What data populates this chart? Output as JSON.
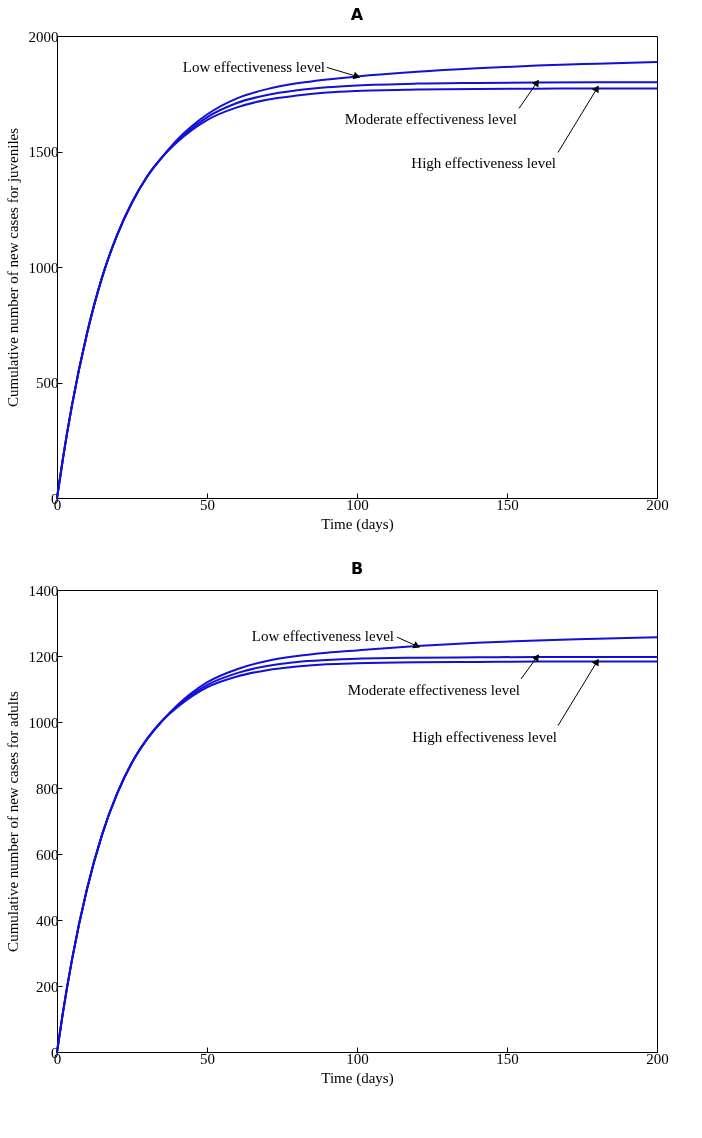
{
  "chart_data": [
    {
      "type": "line",
      "title": "A",
      "xlabel": "Time (days)",
      "ylabel": "Cumulative number of new cases for juveniles",
      "x": [
        0,
        2,
        5,
        10,
        15,
        20,
        25,
        30,
        35,
        40,
        50,
        60,
        70,
        80,
        90,
        100,
        120,
        140,
        160,
        180,
        200
      ],
      "xlim": [
        0,
        200
      ],
      "xticks": [
        0,
        50,
        100,
        150,
        200
      ],
      "ylim": [
        0,
        2000
      ],
      "yticks": [
        0,
        500,
        1000,
        1500,
        2000
      ],
      "series": [
        {
          "name": "Low effectiveness level",
          "color": "#1010d8",
          "values": [
            0,
            173,
            402,
            712,
            954,
            1137,
            1279,
            1391,
            1475,
            1550,
            1660,
            1730,
            1770,
            1795,
            1812,
            1825,
            1845,
            1860,
            1872,
            1880,
            1887
          ]
        },
        {
          "name": "Moderate effectiveness level",
          "color": "#1010d8",
          "values": [
            0,
            173,
            402,
            712,
            954,
            1137,
            1279,
            1391,
            1475,
            1545,
            1648,
            1710,
            1745,
            1765,
            1778,
            1786,
            1794,
            1797,
            1799,
            1800,
            1800
          ]
        },
        {
          "name": "High effectiveness level",
          "color": "#1010d8",
          "values": [
            0,
            173,
            402,
            712,
            954,
            1137,
            1279,
            1391,
            1475,
            1540,
            1636,
            1691,
            1724,
            1742,
            1755,
            1762,
            1768,
            1771,
            1772,
            1773,
            1773
          ]
        }
      ]
    },
    {
      "type": "line",
      "title": "B",
      "xlabel": "Time (days)",
      "ylabel": "Cumulative number of new cases for adults",
      "x": [
        0,
        2,
        5,
        10,
        15,
        20,
        25,
        30,
        35,
        40,
        50,
        60,
        70,
        80,
        90,
        100,
        120,
        140,
        160,
        180,
        200
      ],
      "xlim": [
        0,
        200
      ],
      "xticks": [
        0,
        50,
        100,
        150,
        200
      ],
      "ylim": [
        0,
        1400
      ],
      "yticks": [
        0,
        200,
        400,
        600,
        800,
        1000,
        1200,
        1400
      ],
      "series": [
        {
          "name": "Low effectiveness level",
          "color": "#1010d8",
          "values": [
            0,
            121,
            280,
            494,
            658,
            782,
            877,
            948,
            1003,
            1050,
            1120,
            1160,
            1185,
            1200,
            1210,
            1217,
            1230,
            1240,
            1247,
            1252,
            1257
          ]
        },
        {
          "name": "Moderate effectiveness level",
          "color": "#1010d8",
          "values": [
            0,
            121,
            280,
            494,
            658,
            782,
            877,
            948,
            1003,
            1047,
            1112,
            1148,
            1170,
            1182,
            1188,
            1192,
            1195,
            1196,
            1197,
            1197,
            1197
          ]
        },
        {
          "name": "High effectiveness level",
          "color": "#1010d8",
          "values": [
            0,
            121,
            280,
            494,
            658,
            782,
            877,
            948,
            1003,
            1044,
            1105,
            1138,
            1157,
            1168,
            1175,
            1178,
            1181,
            1182,
            1183,
            1183,
            1183
          ]
        }
      ]
    }
  ]
}
